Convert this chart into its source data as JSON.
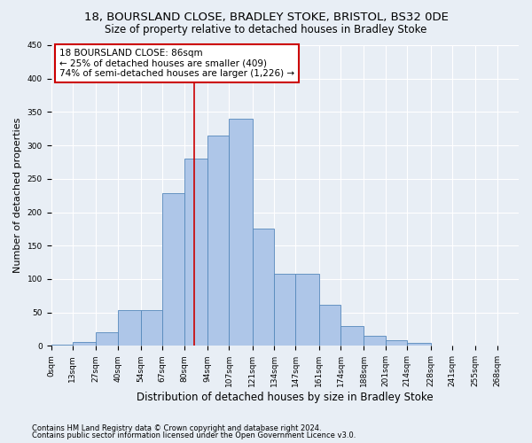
{
  "title1": "18, BOURSLAND CLOSE, BRADLEY STOKE, BRISTOL, BS32 0DE",
  "title2": "Size of property relative to detached houses in Bradley Stoke",
  "xlabel": "Distribution of detached houses by size in Bradley Stoke",
  "ylabel": "Number of detached properties",
  "footnote1": "Contains HM Land Registry data © Crown copyright and database right 2024.",
  "footnote2": "Contains public sector information licensed under the Open Government Licence v3.0.",
  "bin_labels": [
    "0sqm",
    "13sqm",
    "27sqm",
    "40sqm",
    "54sqm",
    "67sqm",
    "80sqm",
    "94sqm",
    "107sqm",
    "121sqm",
    "134sqm",
    "147sqm",
    "161sqm",
    "174sqm",
    "188sqm",
    "201sqm",
    "214sqm",
    "228sqm",
    "241sqm",
    "255sqm",
    "268sqm"
  ],
  "bin_edges": [
    0,
    13,
    27,
    40,
    54,
    67,
    80,
    94,
    107,
    121,
    134,
    147,
    161,
    174,
    188,
    201,
    214,
    228,
    241,
    255,
    268,
    281
  ],
  "bar_heights": [
    2,
    6,
    20,
    53,
    53,
    228,
    280,
    315,
    340,
    175,
    108,
    108,
    62,
    30,
    15,
    8,
    5,
    0,
    0,
    0,
    0
  ],
  "bar_color": "#aec6e8",
  "bar_edge_color": "#5588bb",
  "property_size": 86,
  "vline_color": "#cc0000",
  "annotation_text": "18 BOURSLAND CLOSE: 86sqm\n← 25% of detached houses are smaller (409)\n74% of semi-detached houses are larger (1,226) →",
  "annotation_box_color": "#ffffff",
  "annotation_box_edge": "#cc0000",
  "ylim": [
    0,
    450
  ],
  "yticks": [
    0,
    50,
    100,
    150,
    200,
    250,
    300,
    350,
    400,
    450
  ],
  "background_color": "#e8eef5",
  "plot_bg_color": "#e8eef5",
  "grid_color": "#ffffff",
  "title1_fontsize": 9.5,
  "title2_fontsize": 8.5,
  "xlabel_fontsize": 8.5,
  "ylabel_fontsize": 8,
  "tick_fontsize": 6.5,
  "annotation_fontsize": 7.5
}
